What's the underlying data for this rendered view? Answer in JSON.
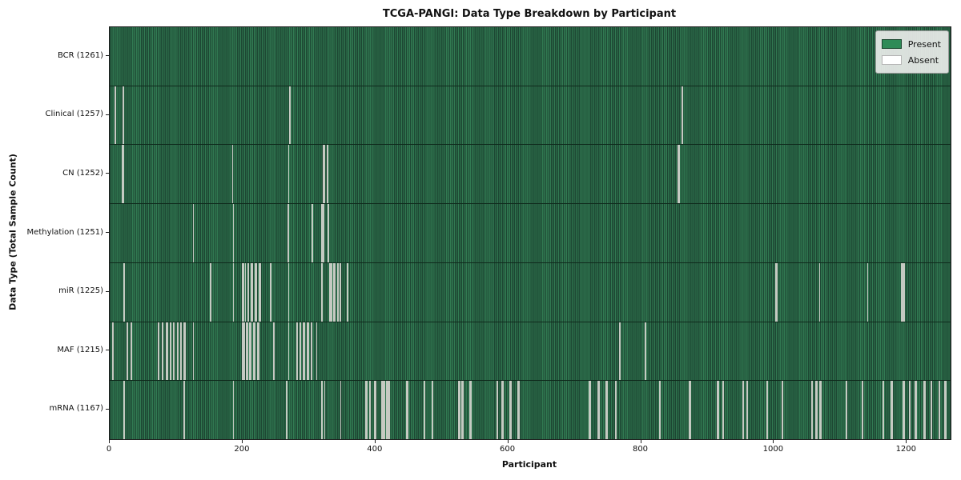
{
  "chart_data": {
    "type": "heatmap",
    "title": "TCGA-PANGI: Data Type Breakdown by Participant",
    "xlabel": "Participant",
    "ylabel": "Data Type (Total Sample Count)",
    "x_ticks": [
      0,
      200,
      400,
      600,
      800,
      1000,
      1200
    ],
    "x_axis_max": 1266,
    "total_participants": 1261,
    "grid": false,
    "legend_position": "upper right",
    "legend_items": [
      {
        "label": "Present",
        "color": "#2e8b57"
      },
      {
        "label": "Absent",
        "color": "#ffffff"
      }
    ],
    "colors": {
      "present": "#2e8b57",
      "absent": "#ffffff",
      "stripe_light": "#317a52",
      "stripe_dark": "#1d4733",
      "gap_line": "#c5cac2"
    },
    "rows": [
      {
        "label": "BCR (1261)",
        "data_type": "BCR",
        "present_count": 1261,
        "absent_participants": []
      },
      {
        "label": "Clinical (1257)",
        "data_type": "Clinical",
        "present_count": 1257,
        "absent_participants": [
          8,
          20,
          270,
          858
        ]
      },
      {
        "label": "CN (1252)",
        "data_type": "CN",
        "present_count": 1252,
        "absent_participants": [
          19,
          20,
          184,
          268,
          320,
          321,
          326,
          852,
          853
        ]
      },
      {
        "label": "Methylation (1251)",
        "data_type": "Methylation",
        "present_count": 1251,
        "absent_participants": [
          125,
          185,
          267,
          268,
          303,
          304,
          318,
          320,
          327,
          328
        ]
      },
      {
        "label": "miR (1225)",
        "data_type": "miR",
        "present_count": 1225,
        "absent_participants": [
          21,
          151,
          185,
          199,
          200,
          203,
          207,
          208,
          212,
          213,
          214,
          218,
          219,
          224,
          225,
          241,
          268,
          318,
          330,
          331,
          332,
          336,
          337,
          341,
          342,
          345,
          346,
          356,
          999,
          1000,
          1064,
          1136,
          1187,
          1188,
          1190,
          1191
        ]
      },
      {
        "label": "MAF (1215)",
        "data_type": "MAF",
        "present_count": 1215,
        "absent_participants": [
          4,
          26,
          32,
          72,
          73,
          78,
          79,
          85,
          86,
          90,
          91,
          95,
          96,
          101,
          102,
          106,
          107,
          111,
          112,
          125,
          199,
          200,
          201,
          205,
          206,
          210,
          211,
          216,
          217,
          222,
          223,
          246,
          268,
          280,
          281,
          285,
          286,
          290,
          291,
          296,
          297,
          302,
          310,
          764,
          765,
          803
        ]
      },
      {
        "label": "mRNA (1167)",
        "data_type": "mRNA",
        "present_count": 1167,
        "absent_participants": [
          21,
          111,
          185,
          265,
          318,
          322,
          346,
          384,
          385,
          389,
          390,
          397,
          398,
          408,
          409,
          411,
          412,
          415,
          416,
          418,
          419,
          445,
          446,
          471,
          472,
          483,
          484,
          523,
          524,
          528,
          529,
          540,
          541,
          580,
          581,
          588,
          589,
          600,
          601,
          612,
          613,
          719,
          720,
          732,
          733,
          744,
          745,
          758,
          759,
          824,
          825,
          869,
          870,
          911,
          912,
          919,
          920,
          949,
          950,
          955,
          956,
          985,
          986,
          1008,
          1009,
          1052,
          1053,
          1059,
          1060,
          1065,
          1066,
          1104,
          1105,
          1128,
          1129,
          1159,
          1160,
          1172,
          1173,
          1190,
          1191,
          1199,
          1200,
          1208,
          1209,
          1221,
          1222,
          1231,
          1232,
          1243,
          1244,
          1252,
          1253,
          1254
        ]
      }
    ]
  }
}
